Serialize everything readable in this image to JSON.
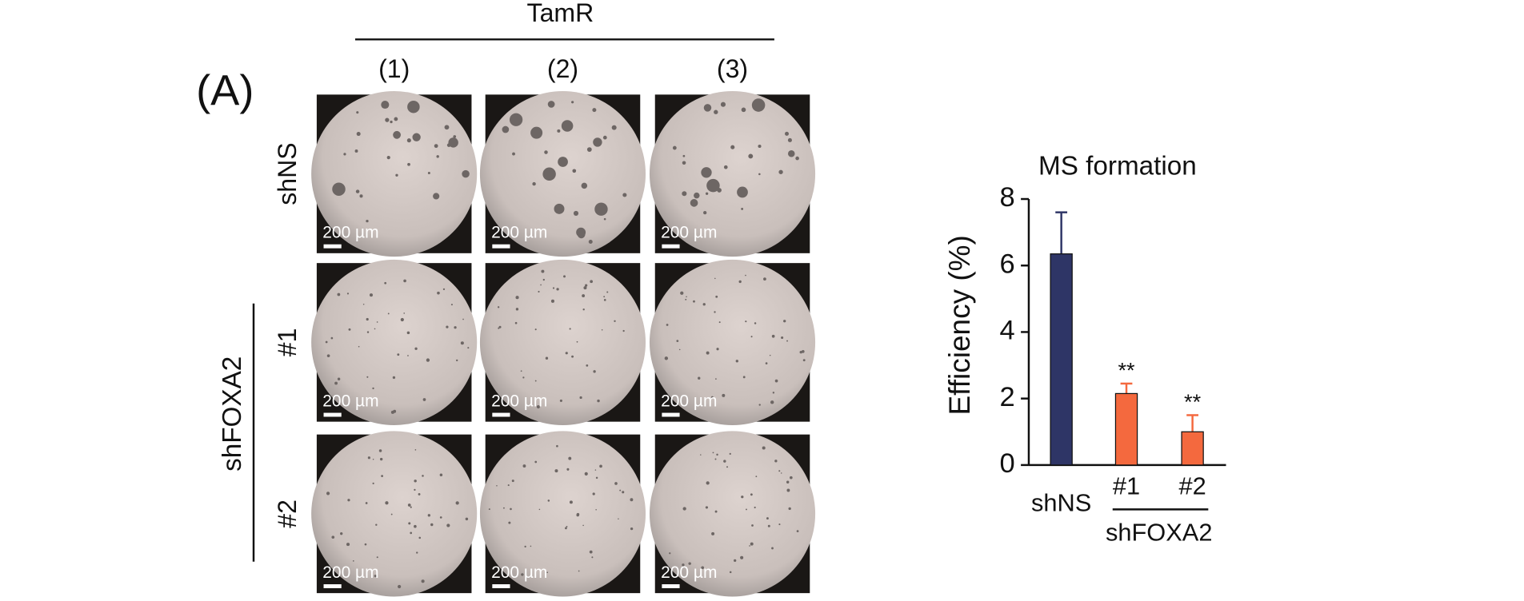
{
  "panel_label": "(A)",
  "group_label": "TamR",
  "columns": [
    "(1)",
    "(2)",
    "(3)"
  ],
  "row_labels": [
    "shNS",
    "#1",
    "#2"
  ],
  "row_group_label": "shFOXA2",
  "scale_bar_label": "200 µm",
  "chart_data": {
    "type": "bar",
    "title": "MS formation",
    "y_label": "Efficiency (%)",
    "categories": [
      "shNS",
      "#1",
      "#2"
    ],
    "category_group_label": "shFOXA2",
    "values": [
      6.35,
      2.15,
      1.0
    ],
    "errors": [
      1.25,
      0.3,
      0.5
    ],
    "colors": [
      "#2e3566",
      "#f4693e",
      "#f4693e"
    ],
    "annotations": [
      null,
      "**",
      "**"
    ],
    "ylim": [
      0,
      8
    ],
    "yticks": [
      0,
      2,
      4,
      6,
      8
    ]
  }
}
